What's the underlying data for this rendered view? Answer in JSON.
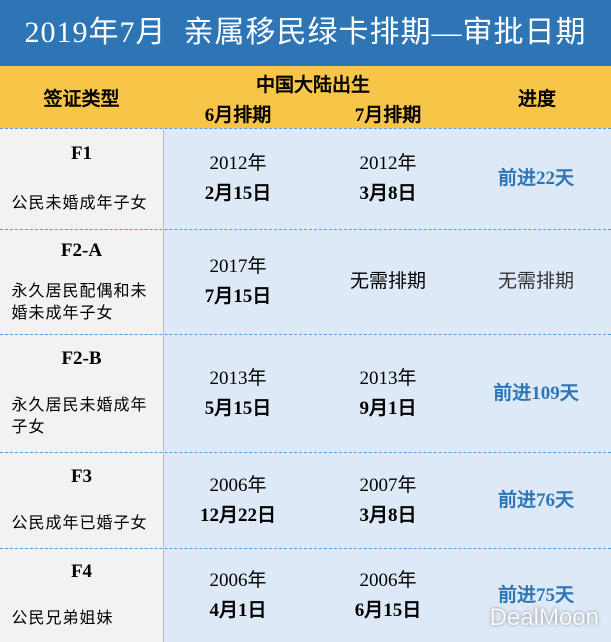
{
  "header": {
    "title": "2019年7月  亲属移民绿卡排期—审批日期"
  },
  "table": {
    "columns": [
      "签证类型",
      "中国大陆出生",
      "6月排期",
      "7月排期",
      "进度"
    ],
    "rows": [
      {
        "category": "F1",
        "description": "公民未婚成年子女",
        "june": [
          "2012年",
          "2月15日"
        ],
        "july": [
          "2012年",
          "3月8日"
        ],
        "progress": "前进22天"
      },
      {
        "category": "F2-A",
        "description": "永久居民配偶和未婚未成年子女",
        "june": [
          "2017年",
          "7月15日"
        ],
        "july": [
          "无需排期"
        ],
        "progress": "无需排期"
      },
      {
        "category": "F2-B",
        "description": "永久居民未婚成年子女",
        "june": [
          "2013年",
          "5月15日"
        ],
        "july": [
          "2013年",
          "9月1日"
        ],
        "progress": "前进109天"
      },
      {
        "category": "F3",
        "description": "公民成年已婚子女",
        "june": [
          "2006年",
          "12月22日"
        ],
        "july": [
          "2007年",
          "3月8日"
        ],
        "progress": "前进76天"
      },
      {
        "category": "F4",
        "description": "公民兄弟姐妹",
        "june": [
          "2006年",
          "4月1日"
        ],
        "july": [
          "2006年",
          "6月15日"
        ],
        "progress": "前进75天"
      }
    ]
  },
  "watermark": "DealMoon"
}
